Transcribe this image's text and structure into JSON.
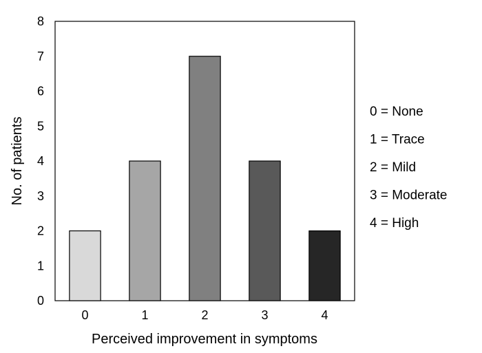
{
  "chart_data": {
    "type": "bar",
    "categories": [
      "0",
      "1",
      "2",
      "3",
      "4"
    ],
    "values": [
      2,
      4,
      7,
      4,
      2
    ],
    "colors": [
      "#d9d9d9",
      "#a6a6a6",
      "#808080",
      "#595959",
      "#262626"
    ],
    "xlabel": "Perceived improvement in symptoms",
    "ylabel": "No. of patients",
    "ylim": [
      0,
      8
    ],
    "yticks": [
      "0",
      "1",
      "2",
      "3",
      "4",
      "5",
      "6",
      "7",
      "8"
    ],
    "grid": false,
    "legend_placement": "right",
    "legend": [
      "0 = None",
      "1 = Trace",
      "2 = Mild",
      "3 = Moderate",
      "4 = High"
    ]
  }
}
